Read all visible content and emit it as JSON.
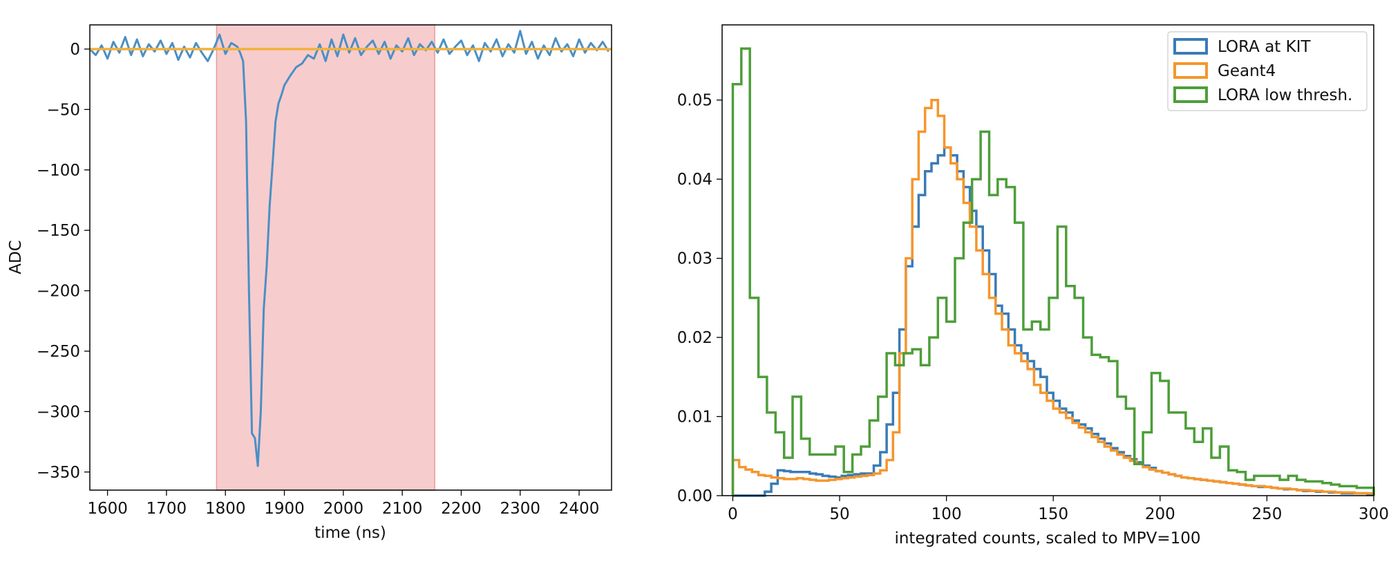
{
  "colors": {
    "blue": "#3a7bb6",
    "orange": "#f5962c",
    "green": "#4d9e3a",
    "shade": "#f4b6b6",
    "waveform": "#4a8fc6",
    "baseline": "#f2b13a"
  },
  "chart_data": [
    {
      "type": "line",
      "title": "",
      "xlabel": "time (ns)",
      "ylabel": "ADC",
      "xlim": [
        1570,
        2455
      ],
      "ylim": [
        -365,
        20
      ],
      "xticks": [
        "1600",
        "1700",
        "1800",
        "1900",
        "2000",
        "2100",
        "2200",
        "2300",
        "2400"
      ],
      "yticks": [
        "0",
        "−50",
        "−100",
        "−150",
        "−200",
        "−250",
        "−300",
        "−350"
      ],
      "grid": false,
      "shaded_region": [
        1785,
        2155
      ],
      "zero_line": 0,
      "series": [
        {
          "color_key": "waveform",
          "x": [
            1570,
            1580,
            1590,
            1600,
            1610,
            1620,
            1630,
            1640,
            1650,
            1660,
            1670,
            1680,
            1690,
            1700,
            1710,
            1720,
            1730,
            1740,
            1750,
            1760,
            1770,
            1780,
            1790,
            1800,
            1810,
            1820,
            1825,
            1830,
            1835,
            1840,
            1845,
            1850,
            1855,
            1860,
            1865,
            1870,
            1875,
            1880,
            1885,
            1890,
            1895,
            1900,
            1910,
            1920,
            1930,
            1940,
            1950,
            1960,
            1970,
            1980,
            1990,
            2000,
            2010,
            2020,
            2030,
            2040,
            2050,
            2060,
            2070,
            2080,
            2090,
            2100,
            2110,
            2120,
            2130,
            2140,
            2150,
            2160,
            2170,
            2180,
            2190,
            2200,
            2210,
            2220,
            2230,
            2240,
            2250,
            2260,
            2270,
            2280,
            2290,
            2300,
            2310,
            2320,
            2330,
            2340,
            2350,
            2360,
            2370,
            2380,
            2390,
            2400,
            2410,
            2420,
            2430,
            2440,
            2450
          ],
          "y": [
            0,
            -5,
            3,
            -8,
            6,
            -3,
            10,
            -5,
            8,
            -6,
            4,
            -2,
            7,
            -4,
            5,
            -9,
            2,
            -7,
            5,
            -3,
            -10,
            0,
            12,
            -4,
            5,
            2,
            -3,
            -10,
            -60,
            -200,
            -318,
            -322,
            -345,
            -300,
            -215,
            -180,
            -130,
            -95,
            -60,
            -45,
            -38,
            -30,
            -22,
            -15,
            -12,
            -5,
            -8,
            4,
            -10,
            8,
            -6,
            12,
            -3,
            9,
            -5,
            2,
            7,
            -4,
            6,
            -8,
            3,
            -2,
            9,
            -5,
            4,
            -1,
            6,
            -3,
            8,
            -4,
            2,
            7,
            -5,
            3,
            -10,
            5,
            -2,
            8,
            -6,
            4,
            -3,
            15,
            -4,
            6,
            -8,
            3,
            -5,
            9,
            -2,
            4,
            -6,
            8,
            -3,
            5,
            -1,
            6,
            -2
          ]
        },
        {
          "color_key": "baseline",
          "x": [
            1570,
            2455
          ],
          "y": [
            0,
            0
          ]
        }
      ]
    },
    {
      "type": "histogram",
      "title": "",
      "xlabel": "integrated counts, scaled to MPV=100",
      "ylabel": "",
      "xlim": [
        -5,
        300
      ],
      "ylim": [
        0,
        0.0595
      ],
      "xticks": [
        "0",
        "50",
        "100",
        "150",
        "200",
        "250",
        "300"
      ],
      "yticks": [
        "0.00",
        "0.01",
        "0.02",
        "0.03",
        "0.04",
        "0.05"
      ],
      "grid": false,
      "legend_position": "top-right",
      "series": [
        {
          "name": "LORA at KIT",
          "color_key": "blue",
          "bin_width": 3,
          "bin_start": 0,
          "values": [
            0,
            0,
            0,
            0,
            0,
            0.0005,
            0.0015,
            0.0032,
            0.0031,
            0.003,
            0.003,
            0.003,
            0.0028,
            0.0027,
            0.0025,
            0.0024,
            0.0023,
            0.0025,
            0.0026,
            0.0027,
            0.0028,
            0.0028,
            0.0038,
            0.0055,
            0.009,
            0.013,
            0.021,
            0.029,
            0.034,
            0.038,
            0.041,
            0.042,
            0.043,
            0.044,
            0.043,
            0.041,
            0.039,
            0.036,
            0.034,
            0.031,
            0.028,
            0.024,
            0.023,
            0.021,
            0.019,
            0.018,
            0.017,
            0.016,
            0.015,
            0.013,
            0.012,
            0.011,
            0.0105,
            0.0095,
            0.009,
            0.0085,
            0.0078,
            0.0072,
            0.0066,
            0.006,
            0.0055,
            0.005,
            0.0046,
            0.0042,
            0.0038,
            0.0035,
            0.0031,
            0.0029,
            0.0027,
            0.0025,
            0.0023,
            0.0022,
            0.0021,
            0.002,
            0.0019,
            0.0018,
            0.0017,
            0.0016,
            0.0015,
            0.0014,
            0.0013,
            0.0012,
            0.0011,
            0.0011,
            0.001,
            0.0009,
            0.0008,
            0.0008,
            0.0007,
            0.0006,
            0.0006,
            0.0005,
            0.0005,
            0.0004,
            0.0004,
            0.0003,
            0.0003,
            0.0003,
            0.0003,
            0.0002
          ]
        },
        {
          "name": "Geant4",
          "color_key": "orange",
          "bin_width": 3,
          "bin_start": 0,
          "values": [
            0.0045,
            0.0036,
            0.0033,
            0.003,
            0.0026,
            0.0025,
            0.0023,
            0.0022,
            0.0021,
            0.0021,
            0.0022,
            0.0021,
            0.002,
            0.0019,
            0.0019,
            0.002,
            0.0021,
            0.0022,
            0.0023,
            0.0024,
            0.0025,
            0.0026,
            0.0028,
            0.0032,
            0.0045,
            0.008,
            0.018,
            0.03,
            0.04,
            0.046,
            0.049,
            0.05,
            0.048,
            0.044,
            0.042,
            0.04,
            0.037,
            0.034,
            0.031,
            0.028,
            0.025,
            0.023,
            0.021,
            0.019,
            0.018,
            0.017,
            0.016,
            0.014,
            0.013,
            0.012,
            0.011,
            0.0105,
            0.0098,
            0.0092,
            0.0086,
            0.008,
            0.0074,
            0.0068,
            0.0062,
            0.0057,
            0.0052,
            0.0048,
            0.0044,
            0.004,
            0.0036,
            0.0033,
            0.0031,
            0.0029,
            0.0027,
            0.0025,
            0.0023,
            0.0022,
            0.0021,
            0.002,
            0.0019,
            0.0018,
            0.0017,
            0.0016,
            0.0015,
            0.0014,
            0.0013,
            0.0012,
            0.0012,
            0.0011,
            0.001,
            0.0009,
            0.0009,
            0.0008,
            0.0007,
            0.0007,
            0.0006,
            0.0006,
            0.0005,
            0.0005,
            0.0004,
            0.0004,
            0.0004,
            0.0003,
            0.0003,
            0.0003
          ]
        },
        {
          "name": "LORA low thresh.",
          "color_key": "green",
          "bin_width": 4,
          "bin_start": 0,
          "values": [
            0.052,
            0.0565,
            0.025,
            0.015,
            0.0105,
            0.008,
            0.0048,
            0.0125,
            0.0072,
            0.0052,
            0.0052,
            0.0052,
            0.0062,
            0.003,
            0.0052,
            0.0062,
            0.0095,
            0.0125,
            0.018,
            0.0165,
            0.018,
            0.0185,
            0.0165,
            0.02,
            0.025,
            0.022,
            0.03,
            0.0345,
            0.04,
            0.046,
            0.038,
            0.04,
            0.039,
            0.0345,
            0.021,
            0.022,
            0.021,
            0.025,
            0.034,
            0.0265,
            0.025,
            0.02,
            0.0178,
            0.0175,
            0.017,
            0.0125,
            0.011,
            0.004,
            0.008,
            0.0155,
            0.0145,
            0.0105,
            0.0105,
            0.0085,
            0.0068,
            0.0085,
            0.0048,
            0.0062,
            0.0032,
            0.003,
            0.002,
            0.0025,
            0.0025,
            0.0025,
            0.002,
            0.0025,
            0.002,
            0.0018,
            0.0018,
            0.0016,
            0.0014,
            0.0012,
            0.0012,
            0.001,
            0.001
          ]
        }
      ]
    }
  ]
}
